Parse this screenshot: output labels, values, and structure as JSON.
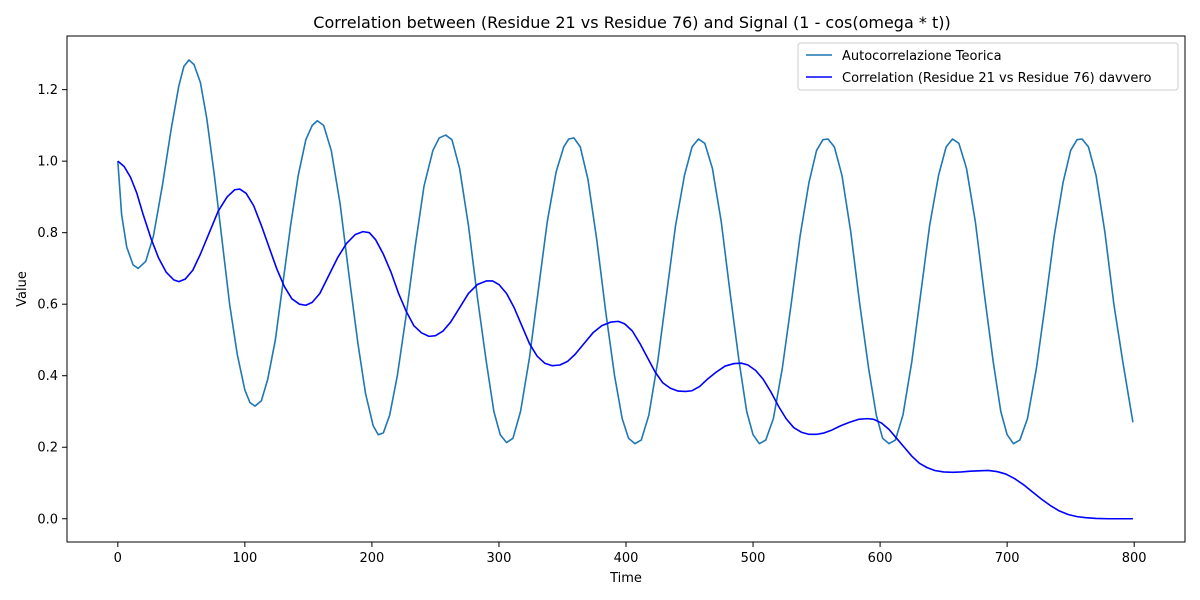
{
  "chart_data": {
    "type": "line",
    "title": "Correlation between (Residue 21 vs Residue 76) and Signal (1 - cos(omega * t))",
    "xlabel": "Time",
    "ylabel": "Value",
    "xlim": [
      -40,
      840
    ],
    "ylim": [
      -0.065,
      1.35
    ],
    "xticks": [
      0,
      100,
      200,
      300,
      400,
      500,
      600,
      700,
      800
    ],
    "xtick_labels": [
      "0",
      "100",
      "200",
      "300",
      "400",
      "500",
      "600",
      "700",
      "800"
    ],
    "yticks": [
      0.0,
      0.2,
      0.4,
      0.6,
      0.8,
      1.0,
      1.2
    ],
    "ytick_labels": [
      "0.0",
      "0.2",
      "0.4",
      "0.6",
      "0.8",
      "1.0",
      "1.2"
    ],
    "grid": false,
    "legend_position": "top-right",
    "series": [
      {
        "name": "Autocorrelazione Teorica",
        "color": "#1f77b4",
        "points": [
          [
            0,
            1.0
          ],
          [
            3,
            0.85
          ],
          [
            7,
            0.76
          ],
          [
            12,
            0.71
          ],
          [
            16,
            0.7
          ],
          [
            22,
            0.72
          ],
          [
            28,
            0.79
          ],
          [
            35,
            0.93
          ],
          [
            42,
            1.09
          ],
          [
            48,
            1.21
          ],
          [
            52,
            1.265
          ],
          [
            56,
            1.283
          ],
          [
            60,
            1.27
          ],
          [
            65,
            1.22
          ],
          [
            70,
            1.12
          ],
          [
            76,
            0.96
          ],
          [
            82,
            0.78
          ],
          [
            88,
            0.6
          ],
          [
            94,
            0.46
          ],
          [
            100,
            0.36
          ],
          [
            104,
            0.325
          ],
          [
            108,
            0.315
          ],
          [
            113,
            0.33
          ],
          [
            118,
            0.39
          ],
          [
            124,
            0.5
          ],
          [
            130,
            0.66
          ],
          [
            136,
            0.82
          ],
          [
            142,
            0.96
          ],
          [
            148,
            1.06
          ],
          [
            153,
            1.1
          ],
          [
            157,
            1.113
          ],
          [
            162,
            1.1
          ],
          [
            168,
            1.03
          ],
          [
            175,
            0.88
          ],
          [
            182,
            0.68
          ],
          [
            189,
            0.49
          ],
          [
            195,
            0.35
          ],
          [
            201,
            0.26
          ],
          [
            205,
            0.235
          ],
          [
            209,
            0.24
          ],
          [
            214,
            0.29
          ],
          [
            220,
            0.4
          ],
          [
            227,
            0.57
          ],
          [
            234,
            0.76
          ],
          [
            241,
            0.93
          ],
          [
            248,
            1.03
          ],
          [
            253,
            1.065
          ],
          [
            258,
            1.073
          ],
          [
            263,
            1.06
          ],
          [
            269,
            0.98
          ],
          [
            276,
            0.82
          ],
          [
            283,
            0.62
          ],
          [
            290,
            0.44
          ],
          [
            296,
            0.3
          ],
          [
            301,
            0.235
          ],
          [
            306,
            0.213
          ],
          [
            311,
            0.225
          ],
          [
            317,
            0.3
          ],
          [
            324,
            0.45
          ],
          [
            331,
            0.64
          ],
          [
            338,
            0.83
          ],
          [
            345,
            0.97
          ],
          [
            351,
            1.04
          ],
          [
            355,
            1.062
          ],
          [
            359,
            1.065
          ],
          [
            364,
            1.04
          ],
          [
            370,
            0.95
          ],
          [
            377,
            0.78
          ],
          [
            384,
            0.58
          ],
          [
            391,
            0.4
          ],
          [
            397,
            0.28
          ],
          [
            402,
            0.225
          ],
          [
            407,
            0.21
          ],
          [
            412,
            0.22
          ],
          [
            418,
            0.29
          ],
          [
            425,
            0.44
          ],
          [
            432,
            0.63
          ],
          [
            439,
            0.82
          ],
          [
            446,
            0.96
          ],
          [
            452,
            1.04
          ],
          [
            457,
            1.062
          ],
          [
            462,
            1.05
          ],
          [
            468,
            0.98
          ],
          [
            475,
            0.83
          ],
          [
            482,
            0.63
          ],
          [
            489,
            0.44
          ],
          [
            495,
            0.3
          ],
          [
            500,
            0.235
          ],
          [
            505,
            0.21
          ],
          [
            510,
            0.22
          ],
          [
            516,
            0.28
          ],
          [
            523,
            0.42
          ],
          [
            530,
            0.6
          ],
          [
            537,
            0.79
          ],
          [
            544,
            0.94
          ],
          [
            550,
            1.03
          ],
          [
            555,
            1.06
          ],
          [
            559,
            1.062
          ],
          [
            564,
            1.04
          ],
          [
            570,
            0.96
          ],
          [
            577,
            0.8
          ],
          [
            584,
            0.6
          ],
          [
            591,
            0.42
          ],
          [
            597,
            0.29
          ],
          [
            602,
            0.225
          ],
          [
            607,
            0.21
          ],
          [
            612,
            0.22
          ],
          [
            618,
            0.29
          ],
          [
            625,
            0.44
          ],
          [
            632,
            0.63
          ],
          [
            639,
            0.82
          ],
          [
            646,
            0.96
          ],
          [
            652,
            1.04
          ],
          [
            657,
            1.062
          ],
          [
            662,
            1.05
          ],
          [
            668,
            0.98
          ],
          [
            675,
            0.83
          ],
          [
            682,
            0.63
          ],
          [
            689,
            0.44
          ],
          [
            695,
            0.3
          ],
          [
            700,
            0.235
          ],
          [
            705,
            0.21
          ],
          [
            710,
            0.22
          ],
          [
            716,
            0.28
          ],
          [
            723,
            0.42
          ],
          [
            730,
            0.6
          ],
          [
            737,
            0.79
          ],
          [
            744,
            0.94
          ],
          [
            750,
            1.03
          ],
          [
            755,
            1.06
          ],
          [
            759,
            1.062
          ],
          [
            764,
            1.04
          ],
          [
            770,
            0.96
          ],
          [
            777,
            0.8
          ],
          [
            784,
            0.6
          ],
          [
            791,
            0.44
          ],
          [
            799,
            0.27
          ]
        ]
      },
      {
        "name": "Correlation (Residue 21 vs Residue 76) davvero",
        "color": "#0000ff",
        "points": [
          [
            0,
            1.0
          ],
          [
            5,
            0.985
          ],
          [
            10,
            0.955
          ],
          [
            15,
            0.91
          ],
          [
            20,
            0.85
          ],
          [
            26,
            0.785
          ],
          [
            32,
            0.73
          ],
          [
            38,
            0.69
          ],
          [
            44,
            0.668
          ],
          [
            48,
            0.663
          ],
          [
            53,
            0.67
          ],
          [
            59,
            0.695
          ],
          [
            65,
            0.74
          ],
          [
            72,
            0.8
          ],
          [
            79,
            0.86
          ],
          [
            86,
            0.9
          ],
          [
            92,
            0.92
          ],
          [
            96,
            0.922
          ],
          [
            101,
            0.91
          ],
          [
            107,
            0.875
          ],
          [
            113,
            0.82
          ],
          [
            119,
            0.76
          ],
          [
            125,
            0.7
          ],
          [
            131,
            0.65
          ],
          [
            137,
            0.615
          ],
          [
            143,
            0.6
          ],
          [
            148,
            0.597
          ],
          [
            153,
            0.605
          ],
          [
            159,
            0.63
          ],
          [
            166,
            0.68
          ],
          [
            173,
            0.73
          ],
          [
            180,
            0.77
          ],
          [
            187,
            0.795
          ],
          [
            193,
            0.803
          ],
          [
            198,
            0.8
          ],
          [
            203,
            0.78
          ],
          [
            209,
            0.74
          ],
          [
            215,
            0.69
          ],
          [
            221,
            0.63
          ],
          [
            227,
            0.58
          ],
          [
            233,
            0.54
          ],
          [
            239,
            0.52
          ],
          [
            245,
            0.51
          ],
          [
            250,
            0.512
          ],
          [
            256,
            0.525
          ],
          [
            262,
            0.55
          ],
          [
            269,
            0.59
          ],
          [
            276,
            0.63
          ],
          [
            283,
            0.655
          ],
          [
            290,
            0.665
          ],
          [
            295,
            0.665
          ],
          [
            300,
            0.655
          ],
          [
            306,
            0.63
          ],
          [
            312,
            0.59
          ],
          [
            318,
            0.54
          ],
          [
            324,
            0.49
          ],
          [
            330,
            0.455
          ],
          [
            336,
            0.435
          ],
          [
            342,
            0.428
          ],
          [
            348,
            0.43
          ],
          [
            354,
            0.44
          ],
          [
            360,
            0.46
          ],
          [
            367,
            0.49
          ],
          [
            374,
            0.52
          ],
          [
            381,
            0.54
          ],
          [
            388,
            0.55
          ],
          [
            394,
            0.552
          ],
          [
            399,
            0.545
          ],
          [
            405,
            0.525
          ],
          [
            411,
            0.49
          ],
          [
            417,
            0.45
          ],
          [
            423,
            0.41
          ],
          [
            429,
            0.38
          ],
          [
            435,
            0.365
          ],
          [
            441,
            0.357
          ],
          [
            447,
            0.356
          ],
          [
            452,
            0.358
          ],
          [
            458,
            0.37
          ],
          [
            464,
            0.39
          ],
          [
            471,
            0.41
          ],
          [
            478,
            0.427
          ],
          [
            485,
            0.434
          ],
          [
            491,
            0.435
          ],
          [
            496,
            0.43
          ],
          [
            502,
            0.415
          ],
          [
            508,
            0.39
          ],
          [
            514,
            0.355
          ],
          [
            520,
            0.315
          ],
          [
            526,
            0.28
          ],
          [
            532,
            0.255
          ],
          [
            538,
            0.242
          ],
          [
            544,
            0.236
          ],
          [
            550,
            0.236
          ],
          [
            556,
            0.24
          ],
          [
            562,
            0.248
          ],
          [
            569,
            0.26
          ],
          [
            576,
            0.27
          ],
          [
            583,
            0.278
          ],
          [
            590,
            0.28
          ],
          [
            595,
            0.278
          ],
          [
            601,
            0.268
          ],
          [
            607,
            0.25
          ],
          [
            613,
            0.225
          ],
          [
            619,
            0.2
          ],
          [
            625,
            0.175
          ],
          [
            631,
            0.155
          ],
          [
            637,
            0.143
          ],
          [
            643,
            0.135
          ],
          [
            650,
            0.131
          ],
          [
            657,
            0.13
          ],
          [
            664,
            0.131
          ],
          [
            671,
            0.133
          ],
          [
            678,
            0.134
          ],
          [
            685,
            0.135
          ],
          [
            692,
            0.132
          ],
          [
            699,
            0.125
          ],
          [
            706,
            0.112
          ],
          [
            713,
            0.095
          ],
          [
            720,
            0.075
          ],
          [
            727,
            0.055
          ],
          [
            734,
            0.037
          ],
          [
            741,
            0.022
          ],
          [
            748,
            0.012
          ],
          [
            755,
            0.006
          ],
          [
            762,
            0.003
          ],
          [
            770,
            0.001
          ],
          [
            780,
            0.0
          ],
          [
            790,
            0.0
          ],
          [
            799,
            0.0
          ]
        ]
      }
    ]
  }
}
